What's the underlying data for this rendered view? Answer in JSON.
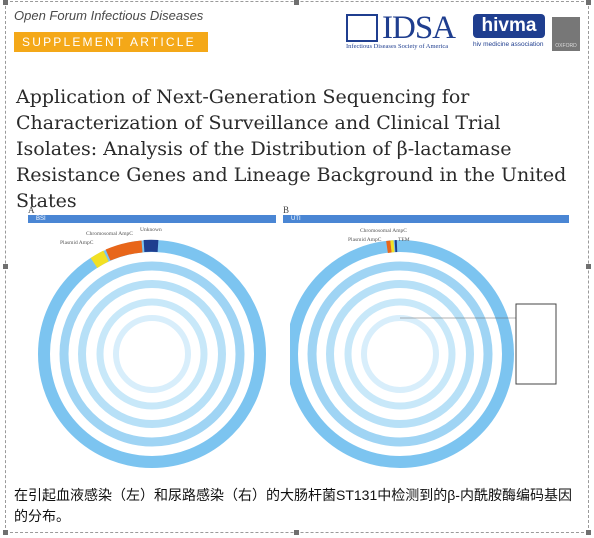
{
  "header": {
    "journal": "Open Forum Infectious Diseases",
    "supplement": "SUPPLEMENT ARTICLE",
    "idsa_logo": "IDSA",
    "idsa_sub": "Infectious Diseases Society of America",
    "hivma_logo": "hivma",
    "hivma_sub": "hiv medicine association",
    "oxford_logo": "OXFORD"
  },
  "title": "Application of Next-Generation Sequencing for Characterization of Surveillance and Clinical Trial Isolates: Analysis of the Distribution of β-lactamase Resistance Genes and Lineage Background in the United States",
  "figure": {
    "panel_a": {
      "label": "A",
      "bar": "BSI",
      "callouts": [
        "Chromosomal AmpC",
        "Unknown",
        "Plasmid AmpC"
      ]
    },
    "panel_b": {
      "label": "B",
      "bar": "UTI",
      "callouts": [
        "Chromosomal AmpC",
        "Plasmid AmpC",
        "TEM"
      ]
    }
  },
  "caption": "在引起血液感染（左）和尿路感染（右）的大肠杆菌ST131中检测到的β-内酰胺酶编码基因的分布。",
  "colors": {
    "accent_orange": "#f4a818",
    "brand_blue": "#1f3e8f",
    "ring_blue": "#7cc4f0"
  }
}
